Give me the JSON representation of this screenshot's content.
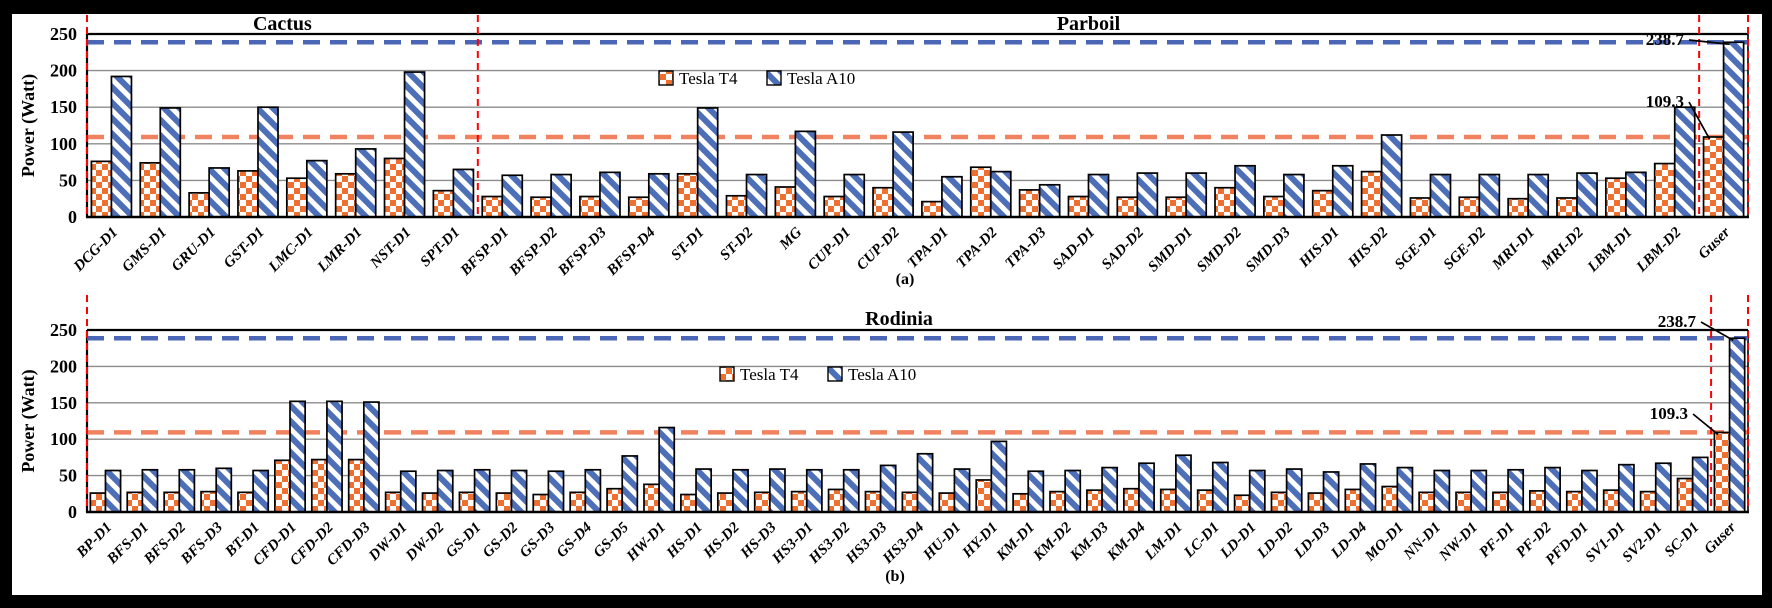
{
  "figure": {
    "ylabel": "Power (Watt)",
    "legend": {
      "t4_label": "Tesla T4",
      "a10_label": "Tesla A10"
    },
    "colors": {
      "t4_fill": "#ED7031",
      "a10_fill": "#4C6FB8",
      "t4_refline": "#F0825F",
      "a10_refline": "#4A66B4",
      "section_divider": "#FF0000",
      "grid": "#8C8C8C",
      "frame": "#000000"
    }
  },
  "chart_data": [
    {
      "type": "bar",
      "panel_label": "(a)",
      "ylabel": "Power (Watt)",
      "ylim": [
        0,
        250
      ],
      "yticks": [
        0,
        50,
        100,
        150,
        200,
        250
      ],
      "grid": "horizontal",
      "legend_position": "top-center-inside",
      "sections": [
        {
          "title": "Cactus",
          "from_index": 0,
          "to_index": 8
        },
        {
          "title": "Parboil",
          "from_index": 8,
          "to_index": 33
        }
      ],
      "divider_boundaries": [
        0,
        8,
        33,
        34
      ],
      "categories": [
        "DCG-D1",
        "GMS-D1",
        "GRU-D1",
        "GST-D1",
        "LMC-D1",
        "LMR-D1",
        "NST-D1",
        "SPT-D1",
        "BFSP-D1",
        "BFSP-D2",
        "BFSP-D3",
        "BFSP-D4",
        "ST-D1",
        "ST-D2",
        "MG",
        "CUP-D1",
        "CUP-D2",
        "TPA-D1",
        "TPA-D2",
        "TPA-D3",
        "SAD-D1",
        "SAD-D2",
        "SMD-D1",
        "SMD-D2",
        "SMD-D3",
        "HIS-D1",
        "HIS-D2",
        "SGE-D1",
        "SGE-D2",
        "MRI-D1",
        "MRI-D2",
        "LBM-D1",
        "LBM-D2",
        "Guser"
      ],
      "series": [
        {
          "name": "Tesla T4",
          "values": [
            76,
            74,
            33,
            63,
            53,
            59,
            80,
            36,
            28,
            27,
            28,
            27,
            59,
            29,
            41,
            28,
            40,
            21,
            68,
            37,
            28,
            27,
            27,
            40,
            28,
            36,
            62,
            26,
            27,
            25,
            26,
            53,
            73,
            109.3
          ]
        },
        {
          "name": "Tesla A10",
          "values": [
            192,
            149,
            67,
            150,
            77,
            93,
            198,
            65,
            57,
            58,
            61,
            59,
            149,
            58,
            117,
            58,
            116,
            55,
            62,
            44,
            58,
            60,
            60,
            70,
            58,
            70,
            112,
            58,
            58,
            58,
            60,
            61,
            150,
            238.7
          ]
        }
      ],
      "reference_lines": [
        {
          "value": 238.7,
          "series": "Tesla A10",
          "style": "dashed"
        },
        {
          "value": 109.3,
          "series": "Tesla T4",
          "style": "dashed"
        }
      ],
      "annotations": [
        {
          "text": "238.7",
          "category": "Guser",
          "series": "Tesla A10"
        },
        {
          "text": "109.3",
          "category": "Guser",
          "series": "Tesla T4"
        }
      ]
    },
    {
      "type": "bar",
      "panel_label": "(b)",
      "ylabel": "Power (Watt)",
      "ylim": [
        0,
        250
      ],
      "yticks": [
        0,
        50,
        100,
        150,
        200,
        250
      ],
      "grid": "horizontal",
      "legend_position": "top-center-inside",
      "sections": [
        {
          "title": "Rodinia",
          "from_index": 0,
          "to_index": 44
        }
      ],
      "divider_boundaries": [
        0,
        44,
        45
      ],
      "categories": [
        "BP-D1",
        "BFS-D1",
        "BFS-D2",
        "BFS-D3",
        "BT-D1",
        "CFD-D1",
        "CFD-D2",
        "CFD-D3",
        "DW-D1",
        "DW-D2",
        "GS-D1",
        "GS-D2",
        "GS-D3",
        "GS-D4",
        "GS-D5",
        "HW-D1",
        "HS-D1",
        "HS-D2",
        "HS-D3",
        "HS3-D1",
        "HS3-D2",
        "HS3-D3",
        "HS3-D4",
        "HU-D1",
        "HY-D1",
        "KM-D1",
        "KM-D2",
        "KM-D3",
        "KM-D4",
        "LM-D1",
        "LC-D1",
        "LD-D1",
        "LD-D2",
        "LD-D3",
        "LD-D4",
        "MO-D1",
        "NN-D1",
        "NW-D1",
        "PF-D1",
        "PF-D2",
        "PFD-D1",
        "SV1-D1",
        "SV2-D1",
        "SC-D1",
        "Guser"
      ],
      "series": [
        {
          "name": "Tesla T4",
          "values": [
            26,
            27,
            27,
            28,
            27,
            71,
            72,
            72,
            27,
            26,
            27,
            26,
            24,
            27,
            32,
            38,
            24,
            26,
            27,
            28,
            31,
            28,
            27,
            26,
            44,
            25,
            28,
            30,
            32,
            31,
            30,
            23,
            27,
            26,
            31,
            35,
            27,
            27,
            27,
            29,
            28,
            30,
            28,
            46,
            109.3
          ]
        },
        {
          "name": "Tesla A10",
          "values": [
            57,
            58,
            58,
            60,
            57,
            152,
            152,
            151,
            56,
            57,
            58,
            57,
            56,
            58,
            77,
            116,
            59,
            58,
            59,
            58,
            58,
            64,
            80,
            59,
            97,
            56,
            57,
            61,
            67,
            78,
            68,
            57,
            59,
            55,
            66,
            61,
            57,
            57,
            58,
            61,
            57,
            65,
            67,
            75,
            238.7
          ]
        }
      ],
      "reference_lines": [
        {
          "value": 238.7,
          "series": "Tesla A10",
          "style": "dashed"
        },
        {
          "value": 109.3,
          "series": "Tesla T4",
          "style": "dashed"
        }
      ],
      "annotations": [
        {
          "text": "238.7",
          "category": "Guser",
          "series": "Tesla A10"
        },
        {
          "text": "109.3",
          "category": "Guser",
          "series": "Tesla T4"
        }
      ]
    }
  ]
}
